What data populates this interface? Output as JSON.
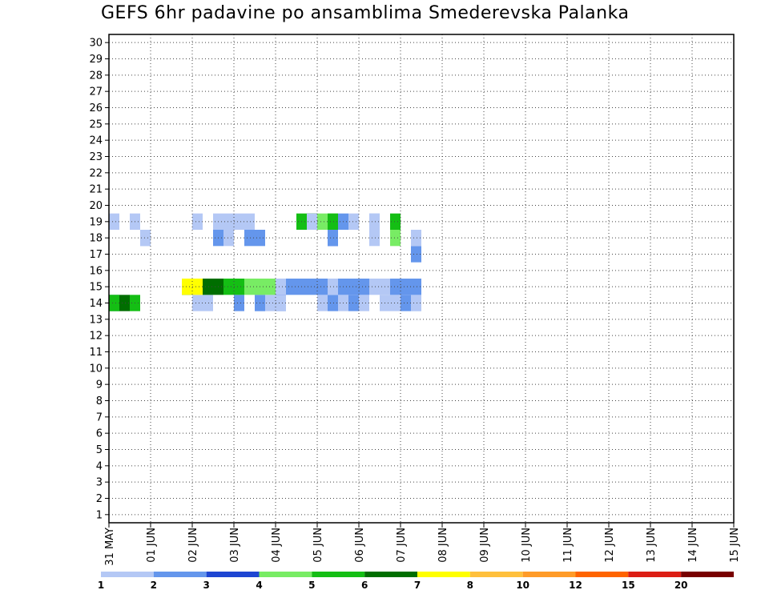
{
  "chart_data": {
    "type": "heatmap",
    "title": "GEFS 6hr padavine po ansamblima Smederevska Palanka",
    "x_labels": [
      "31 MAY",
      "01 JUN",
      "02 JUN",
      "03 JUN",
      "04 JUN",
      "05 JUN",
      "06 JUN",
      "07 JUN",
      "08 JUN",
      "09 JUN",
      "10 JUN",
      "11 JUN",
      "12 JUN",
      "13 JUN",
      "14 JUN",
      "15 JUN"
    ],
    "y_labels": [
      "1",
      "2",
      "3",
      "4",
      "5",
      "6",
      "7",
      "8",
      "9",
      "10",
      "11",
      "12",
      "13",
      "14",
      "15",
      "16",
      "17",
      "18",
      "19",
      "20",
      "21",
      "22",
      "23",
      "24",
      "25",
      "26",
      "27",
      "28",
      "29",
      "30"
    ],
    "grid": true,
    "colorbar": {
      "levels": [
        "1",
        "2",
        "3",
        "4",
        "5",
        "6",
        "7",
        "8",
        "10",
        "12",
        "15",
        "20"
      ],
      "colors": [
        "#b4c8f5",
        "#6496ec",
        "#1e46d2",
        "#78ec64",
        "#14be14",
        "#006e00",
        "#ffff00",
        "#ffc03c",
        "#ff9b28",
        "#ff6400",
        "#dc1e14",
        "#780000"
      ]
    },
    "cells": [
      [
        1,
        14,
        3
      ],
      [
        1,
        14,
        4
      ],
      [
        1,
        14,
        5
      ],
      [
        2,
        14,
        6
      ],
      [
        3,
        14,
        5
      ],
      [
        9,
        14,
        1
      ],
      [
        10,
        14,
        1
      ],
      [
        13,
        14,
        2
      ],
      [
        15,
        14,
        1
      ],
      [
        15,
        14,
        2
      ],
      [
        16,
        14,
        1
      ],
      [
        17,
        14,
        2
      ],
      [
        17,
        14,
        1
      ],
      [
        21,
        14,
        1
      ],
      [
        22,
        14,
        2
      ],
      [
        23,
        14,
        1
      ],
      [
        24,
        14,
        2
      ],
      [
        25,
        14,
        1
      ],
      [
        27,
        14,
        1
      ],
      [
        28,
        14,
        1
      ],
      [
        29,
        14,
        2
      ],
      [
        30,
        14,
        1
      ],
      [
        30,
        14,
        1
      ],
      [
        8,
        15,
        6
      ],
      [
        8,
        15,
        7
      ],
      [
        9,
        15,
        7
      ],
      [
        10,
        15,
        6
      ],
      [
        11,
        15,
        6
      ],
      [
        12,
        15,
        5
      ],
      [
        13,
        15,
        5
      ],
      [
        14,
        15,
        4
      ],
      [
        15,
        15,
        4
      ],
      [
        16,
        15,
        4
      ],
      [
        17,
        15,
        3
      ],
      [
        17,
        15,
        1
      ],
      [
        18,
        15,
        2
      ],
      [
        19,
        15,
        2
      ],
      [
        20,
        15,
        2
      ],
      [
        21,
        15,
        2
      ],
      [
        22,
        15,
        1
      ],
      [
        23,
        15,
        2
      ],
      [
        24,
        15,
        2
      ],
      [
        25,
        15,
        2
      ],
      [
        26,
        15,
        1
      ],
      [
        27,
        15,
        1
      ],
      [
        28,
        15,
        2
      ],
      [
        29,
        15,
        2
      ],
      [
        30,
        15,
        2
      ],
      [
        30,
        17,
        2
      ],
      [
        30,
        18,
        1
      ],
      [
        28,
        18,
        4
      ],
      [
        26,
        18,
        1
      ],
      [
        22,
        18,
        3
      ],
      [
        22,
        18,
        2
      ],
      [
        15,
        18,
        2
      ],
      [
        14,
        18,
        2
      ],
      [
        12,
        18,
        1
      ],
      [
        11,
        18,
        2
      ],
      [
        4,
        18,
        1
      ],
      [
        4,
        18,
        1
      ],
      [
        26,
        19,
        1
      ],
      [
        26,
        19,
        1
      ],
      [
        24,
        19,
        1
      ],
      [
        23,
        19,
        2
      ],
      [
        19,
        19,
        5
      ],
      [
        20,
        19,
        5
      ],
      [
        20,
        19,
        6
      ],
      [
        13,
        19,
        1
      ],
      [
        14,
        19,
        1
      ],
      [
        12,
        19,
        1
      ],
      [
        11,
        19,
        1
      ],
      [
        9,
        19,
        1
      ],
      [
        3,
        19,
        1
      ],
      [
        1,
        19,
        1
      ],
      [
        28,
        19,
        5
      ],
      [
        22,
        19,
        4
      ],
      [
        22,
        19,
        5
      ],
      [
        21,
        19,
        4
      ],
      [
        20,
        19,
        1
      ]
    ]
  }
}
